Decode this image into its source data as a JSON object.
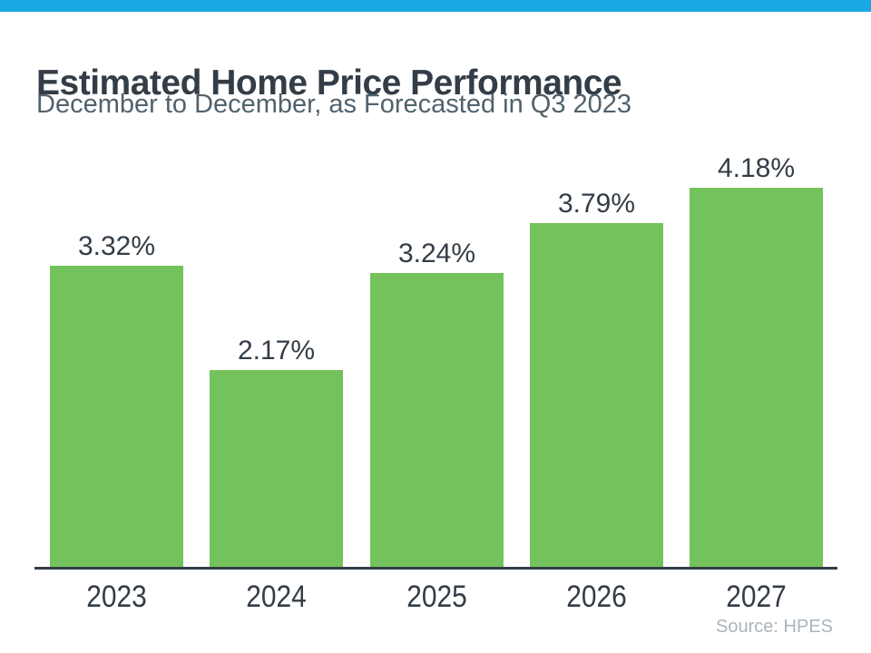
{
  "header": {
    "title": "Estimated Home Price Performance",
    "subtitle": "December to December, as Forecasted in Q3 2023"
  },
  "chart_data": {
    "type": "bar",
    "title": "Estimated Home Price Performance",
    "subtitle": "December to December, as Forecasted in Q3 2023",
    "categories": [
      "2023",
      "2024",
      "2025",
      "2026",
      "2027"
    ],
    "values": [
      3.32,
      2.17,
      3.24,
      3.79,
      4.18
    ],
    "data_labels": [
      "3.32%",
      "2.17%",
      "3.24%",
      "3.79%",
      "4.18%"
    ],
    "xlabel": "",
    "ylabel": "",
    "ylim": [
      0,
      4.5
    ],
    "grid": false,
    "legend": false,
    "bar_color": "#74C25C",
    "source": "Source: HPES"
  },
  "footer": {
    "source": "Source: HPES"
  },
  "colors": {
    "accent_bar_blue": "#18A9E2",
    "bar_green": "#74C25C",
    "text_dark": "#333D47",
    "text_subtitle": "#51626C",
    "source_gray": "#A9B5BE",
    "axis_line": "#333D47"
  }
}
